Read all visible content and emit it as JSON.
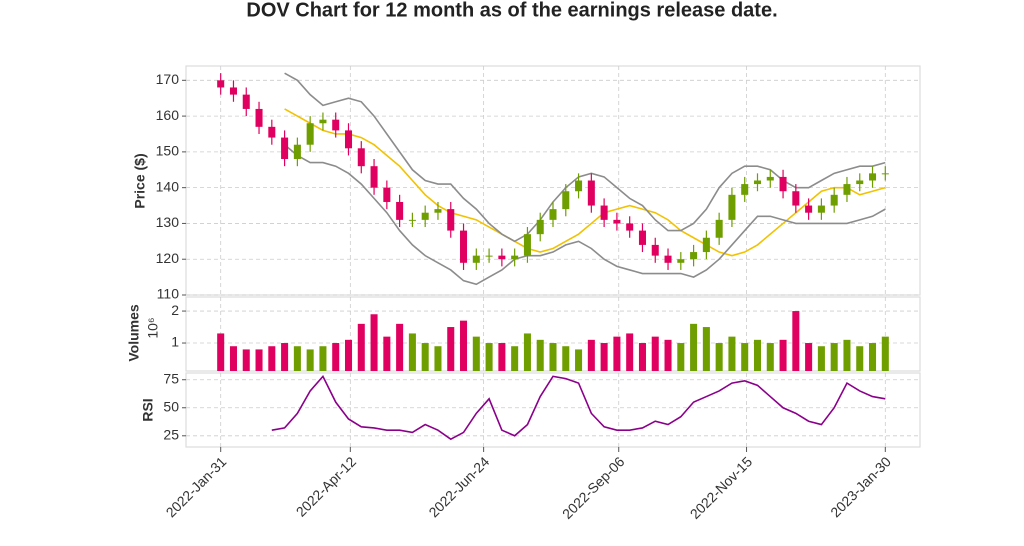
{
  "chart_data": {
    "type": "stock",
    "title": "DOV Chart for 12 month as of the earnings release date.",
    "grid": true,
    "x": [
      "2022-01-31",
      "2022-02-07",
      "2022-02-14",
      "2022-02-21",
      "2022-02-28",
      "2022-03-07",
      "2022-03-14",
      "2022-03-21",
      "2022-03-28",
      "2022-04-04",
      "2022-04-11",
      "2022-04-18",
      "2022-04-25",
      "2022-05-02",
      "2022-05-09",
      "2022-05-16",
      "2022-05-23",
      "2022-05-30",
      "2022-06-06",
      "2022-06-13",
      "2022-06-20",
      "2022-06-27",
      "2022-07-04",
      "2022-07-11",
      "2022-07-18",
      "2022-07-25",
      "2022-08-01",
      "2022-08-08",
      "2022-08-15",
      "2022-08-22",
      "2022-08-29",
      "2022-09-05",
      "2022-09-12",
      "2022-09-19",
      "2022-09-26",
      "2022-10-03",
      "2022-10-10",
      "2022-10-17",
      "2022-10-24",
      "2022-10-31",
      "2022-11-07",
      "2022-11-14",
      "2022-11-21",
      "2022-11-28",
      "2022-12-05",
      "2022-12-12",
      "2022-12-19",
      "2022-12-26",
      "2023-01-02",
      "2023-01-09",
      "2023-01-16",
      "2023-01-23",
      "2023-01-30"
    ],
    "xlim": [
      "2022-01-12",
      "2023-02-18"
    ],
    "xticks": [
      {
        "value": "2022-01-31",
        "label": "2022-Jan-31"
      },
      {
        "value": "2022-04-12",
        "label": "2022-Apr-12"
      },
      {
        "value": "2022-06-24",
        "label": "2022-Jun-24"
      },
      {
        "value": "2022-09-06",
        "label": "2022-Sep-06"
      },
      {
        "value": "2022-11-15",
        "label": "2022-Nov-15"
      },
      {
        "value": "2023-01-30",
        "label": "2023-Jan-30"
      }
    ],
    "up_color": "#6f9e00",
    "down_color": "#e0005f",
    "price": {
      "ylabel": "Price ($)",
      "ylim": [
        110,
        174
      ],
      "yticks": [
        110,
        120,
        130,
        140,
        150,
        160,
        170
      ],
      "open": [
        170,
        168,
        166,
        162,
        157,
        154,
        148,
        152,
        158,
        159,
        156,
        151,
        146,
        140,
        136,
        131,
        131,
        133,
        134,
        128,
        119,
        121,
        121,
        120,
        121,
        127,
        131,
        134,
        139,
        142,
        135,
        131,
        130,
        128,
        124,
        121,
        119,
        120,
        122,
        126,
        131,
        138,
        141,
        142,
        143,
        139,
        135,
        133,
        135,
        138,
        141,
        142,
        144
      ],
      "high": [
        172,
        170,
        168,
        164,
        159,
        156,
        154,
        160,
        161,
        161,
        158,
        153,
        148,
        142,
        138,
        133,
        135,
        136,
        136,
        130,
        123,
        123,
        123,
        123,
        129,
        133,
        136,
        141,
        144,
        144,
        137,
        133,
        132,
        130,
        126,
        123,
        122,
        124,
        128,
        133,
        140,
        143,
        144,
        145,
        145,
        141,
        137,
        137,
        140,
        143,
        144,
        146,
        146
      ],
      "low": [
        166,
        164,
        160,
        155,
        152,
        146,
        146,
        150,
        156,
        154,
        149,
        144,
        138,
        134,
        129,
        129,
        129,
        131,
        126,
        117,
        117,
        119,
        118,
        118,
        119,
        125,
        129,
        132,
        137,
        133,
        129,
        128,
        126,
        122,
        119,
        117,
        117,
        118,
        120,
        124,
        129,
        136,
        139,
        140,
        137,
        133,
        131,
        131,
        133,
        136,
        139,
        140,
        142
      ],
      "close": [
        168,
        166,
        162,
        157,
        154,
        148,
        152,
        158,
        159,
        156,
        151,
        146,
        140,
        136,
        131,
        131,
        133,
        134,
        128,
        119,
        121,
        121,
        120,
        121,
        127,
        131,
        134,
        139,
        142,
        135,
        131,
        130,
        128,
        124,
        121,
        119,
        120,
        122,
        126,
        131,
        138,
        141,
        142,
        143,
        139,
        135,
        133,
        135,
        138,
        141,
        142,
        144,
        144
      ],
      "series": [
        {
          "color": "#f2c200",
          "values": [
            null,
            null,
            null,
            null,
            null,
            162,
            160,
            158,
            156,
            155,
            155,
            154,
            152,
            149,
            146,
            142,
            138,
            135,
            133,
            132,
            131,
            129,
            127,
            125,
            123,
            122,
            123,
            125,
            127,
            130,
            133,
            134,
            135,
            134,
            133,
            131,
            128,
            126,
            124,
            122,
            121,
            122,
            124,
            127,
            130,
            133,
            136,
            139,
            140,
            140,
            138,
            139,
            140
          ]
        },
        {
          "color": "#8c8c8c",
          "values": [
            null,
            null,
            null,
            null,
            null,
            172,
            170,
            166,
            163,
            164,
            165,
            164,
            160,
            155,
            150,
            145,
            142,
            141,
            141,
            137,
            134,
            130,
            127,
            125,
            127,
            131,
            136,
            140,
            143,
            144,
            143,
            140,
            137,
            135,
            131,
            128,
            128,
            130,
            134,
            140,
            144,
            146,
            146,
            145,
            142,
            140,
            140,
            142,
            144,
            145,
            146,
            146,
            147
          ]
        },
        {
          "color": "#8c8c8c",
          "values": [
            null,
            null,
            null,
            null,
            null,
            152,
            149,
            147,
            147,
            146,
            144,
            141,
            137,
            133,
            128,
            124,
            121,
            119,
            117,
            114,
            113,
            115,
            117,
            120,
            121,
            121,
            122,
            124,
            125,
            123,
            120,
            118,
            117,
            116,
            116,
            116,
            116,
            115,
            117,
            120,
            124,
            128,
            132,
            132,
            131,
            130,
            130,
            130,
            130,
            130,
            131,
            132,
            134
          ]
        }
      ]
    },
    "volume": {
      "ylabel": "Volumes",
      "scale_label": "10⁶",
      "ylim": [
        0.125,
        2.44
      ],
      "yticks": [
        1,
        2
      ],
      "values": [
        1.3,
        0.9,
        0.8,
        0.8,
        0.9,
        1.0,
        0.9,
        0.8,
        0.9,
        1.0,
        1.1,
        1.6,
        1.9,
        1.2,
        1.6,
        1.3,
        1.0,
        0.9,
        1.5,
        1.7,
        1.2,
        1.0,
        1.0,
        0.9,
        1.3,
        1.1,
        1.0,
        0.9,
        0.8,
        1.1,
        1.0,
        1.2,
        1.3,
        1.0,
        1.2,
        1.1,
        1.0,
        1.6,
        1.5,
        1.0,
        1.2,
        1.0,
        1.1,
        1.0,
        1.1,
        2.0,
        1.0,
        0.9,
        1.0,
        1.1,
        0.9,
        1.0,
        1.2
      ]
    },
    "rsi": {
      "ylabel": "RSI",
      "color": "#8b008b",
      "ylim": [
        15,
        81
      ],
      "yticks": [
        25,
        50,
        75
      ],
      "values": [
        null,
        null,
        null,
        null,
        30,
        32,
        45,
        65,
        78,
        55,
        40,
        33,
        32,
        30,
        30,
        28,
        35,
        30,
        22,
        28,
        45,
        58,
        30,
        25,
        35,
        60,
        78,
        76,
        72,
        45,
        33,
        30,
        30,
        32,
        38,
        35,
        42,
        55,
        60,
        65,
        72,
        74,
        70,
        60,
        50,
        45,
        38,
        35,
        50,
        72,
        65,
        60,
        58
      ]
    }
  }
}
